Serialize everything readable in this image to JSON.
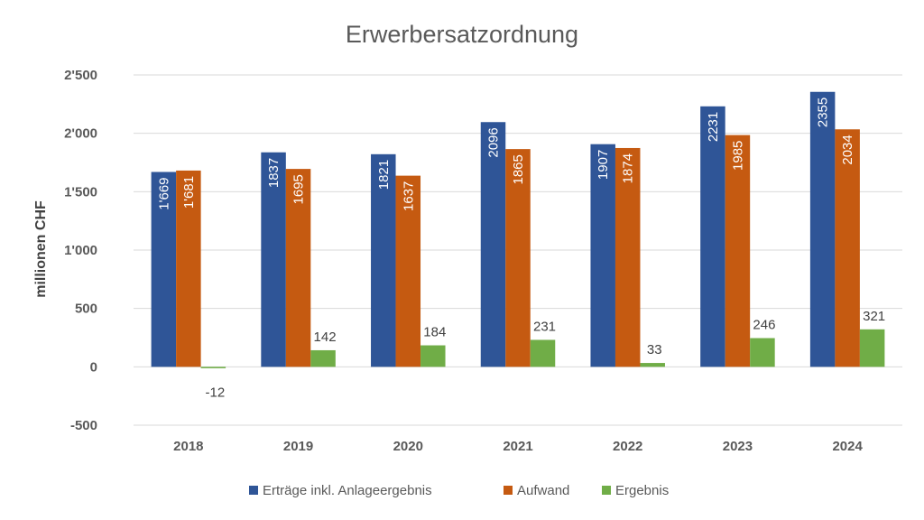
{
  "chart_data": {
    "type": "bar",
    "title": "Erwerbersatzordnung",
    "xlabel": "",
    "ylabel": "millionen CHF",
    "ylim": [
      -500,
      2500
    ],
    "yticks": [
      -500,
      0,
      500,
      1000,
      1500,
      2000,
      2500
    ],
    "ytick_labels": [
      "-500",
      "0",
      "500",
      "1'000",
      "1'500",
      "2'000",
      "2'500"
    ],
    "grid": true,
    "legend_position": "bottom",
    "categories": [
      "2018",
      "2019",
      "2020",
      "2021",
      "2022",
      "2023",
      "2024"
    ],
    "series": [
      {
        "name": "Erträge inkl. Anlageergebnis",
        "color": "#2F5597",
        "values": [
          1669,
          1837,
          1821,
          2096,
          1907,
          2231,
          2355
        ],
        "labels": [
          "1'669",
          "1837",
          "1821",
          "2096",
          "1907",
          "2231",
          "2355"
        ],
        "label_position": "inside-rotated"
      },
      {
        "name": "Aufwand",
        "color": "#C55A11",
        "values": [
          1681,
          1695,
          1637,
          1865,
          1874,
          1985,
          2034
        ],
        "labels": [
          "1'681",
          "1695",
          "1637",
          "1865",
          "1874",
          "1985",
          "2034"
        ],
        "label_position": "inside-rotated"
      },
      {
        "name": "Ergebnis",
        "color": "#70AD47",
        "values": [
          -12,
          142,
          184,
          231,
          33,
          246,
          321
        ],
        "labels": [
          "-12",
          "142",
          "184",
          "231",
          "33",
          "246",
          "321"
        ],
        "label_position": "outside"
      }
    ]
  }
}
